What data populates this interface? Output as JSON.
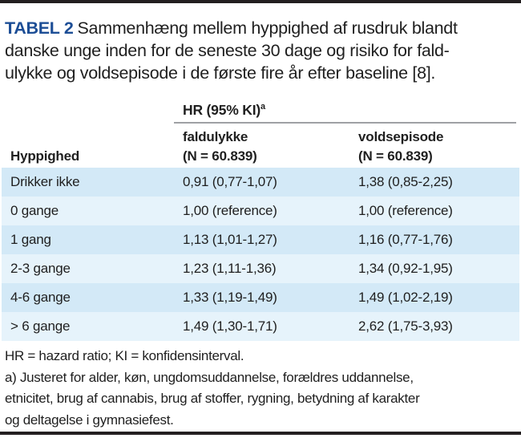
{
  "title": {
    "label": "TABEL 2",
    "text_lines": [
      "Sammenhæng mellem hyppighed af rusdruk blandt",
      "danske unge inden for de seneste 30 dage og risiko for fald-",
      "ulykke og voldsepisode i de første fire år efter baseline [8]."
    ]
  },
  "table": {
    "group_header": "HR (95% KI)",
    "group_header_superscript": "a",
    "row_header": "Hyppighed",
    "columns": [
      {
        "label": "faldulykke",
        "n_label": "(N = 60.839)"
      },
      {
        "label": "voldsepisode",
        "n_label": "(N = 60.839)"
      }
    ],
    "rows": [
      {
        "label": "Drikker ikke",
        "faldulykke": "0,91 (0,77-1,07)",
        "voldsepisode": "1,38 (0,85-2,25)"
      },
      {
        "label": "0 gange",
        "faldulykke": "1,00 (reference)",
        "voldsepisode": "1,00 (reference)"
      },
      {
        "label": "1 gang",
        "faldulykke": "1,13 (1,01-1,27)",
        "voldsepisode": "1,16 (0,77-1,76)"
      },
      {
        "label": "2-3 gange",
        "faldulykke": "1,23 (1,11-1,36)",
        "voldsepisode": "1,34 (0,92-1,95)"
      },
      {
        "label": "4-6 gange",
        "faldulykke": "1,33 (1,19-1,49)",
        "voldsepisode": "1,49 (1,02-2,19)"
      },
      {
        "label": "> 6 gange",
        "faldulykke": "1,49 (1,30-1,71)",
        "voldsepisode": "2,62 (1,75-3,93)"
      }
    ]
  },
  "footnotes": {
    "abbreviation_line": "HR = hazard ratio; KI = konfidensinterval.",
    "note_a_lines": [
      "a) Justeret for alder, køn, ungdomsuddannelse, forældres uddannelse,",
      "etnicitet, brug af cannabis, brug af stoffer, rygning, betydning af karakter",
      "og deltagelse i gymnasiefest."
    ]
  },
  "colors": {
    "accent_blue": "#1d4e96",
    "row_stripe_dark": "#d3e9f7",
    "row_stripe_light": "#e6f3fb",
    "rule_gray": "#9fa1a4",
    "bar_black": "#231f20"
  }
}
